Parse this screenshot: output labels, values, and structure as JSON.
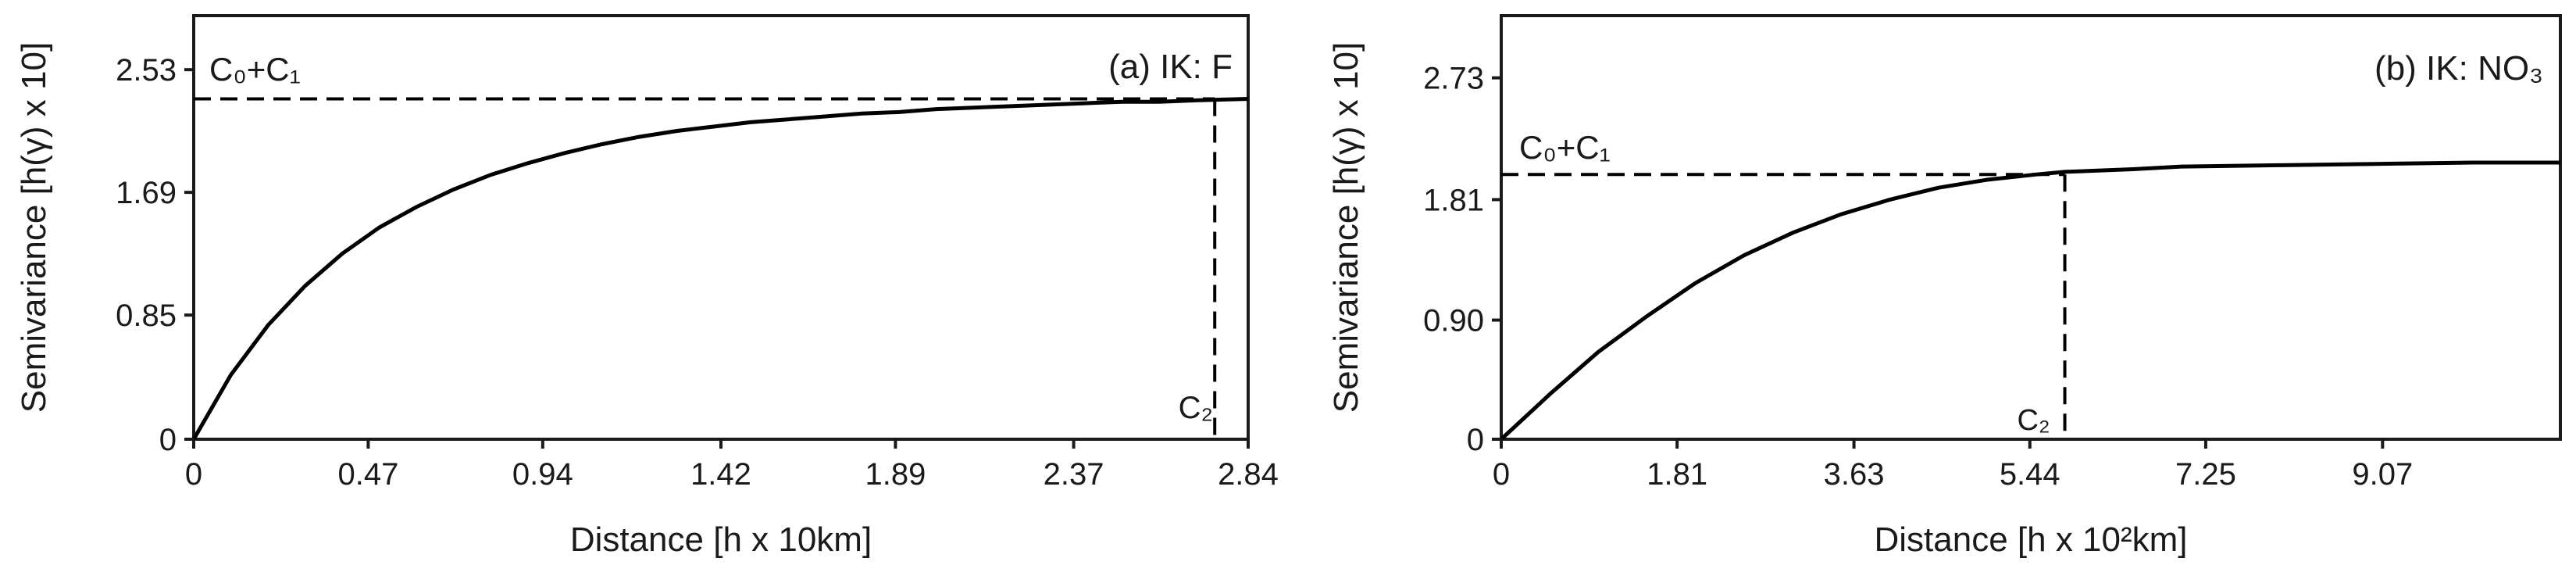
{
  "chart_data": [
    {
      "type": "line",
      "title": "(a) IK: F",
      "xlabel": "Distance [h x 10km]",
      "ylabel": "Semivariance [h(γ) x 10]",
      "x_ticks": [
        "0",
        "0.47",
        "0.94",
        "1.42",
        "1.89",
        "2.37",
        "2.84"
      ],
      "y_ticks": [
        "0",
        "0.85",
        "1.69",
        "2.53"
      ],
      "xlim": [
        0,
        2.84
      ],
      "ylim": [
        0,
        2.9
      ],
      "grid": false,
      "series": [
        {
          "x": [
            0,
            0.1,
            0.2,
            0.3,
            0.4,
            0.5,
            0.6,
            0.7,
            0.8,
            0.9,
            1.0,
            1.1,
            1.2,
            1.3,
            1.4,
            1.5,
            1.6,
            1.7,
            1.8,
            1.9,
            2.0,
            2.1,
            2.2,
            2.3,
            2.4,
            2.5,
            2.6,
            2.7,
            2.84
          ],
          "y": [
            0,
            0.44,
            0.78,
            1.05,
            1.27,
            1.45,
            1.59,
            1.71,
            1.81,
            1.89,
            1.96,
            2.02,
            2.07,
            2.11,
            2.14,
            2.17,
            2.19,
            2.21,
            2.23,
            2.24,
            2.26,
            2.27,
            2.28,
            2.29,
            2.3,
            2.31,
            2.31,
            2.32,
            2.33
          ]
        }
      ],
      "sill": 2.33,
      "range": 2.75,
      "annotations": {
        "sill_label": "C₀+C₁",
        "range_label": "C₂"
      }
    },
    {
      "type": "line",
      "title": "(b) IK: NO₃",
      "xlabel": "Distance [h x 10²km]",
      "ylabel": "Semivariance [h(γ) x 10]",
      "x_ticks": [
        "0",
        "1.81",
        "3.63",
        "5.44",
        "7.25",
        "9.07"
      ],
      "y_ticks": [
        "0",
        "0.90",
        "1.81",
        "2.73"
      ],
      "xlim": [
        0,
        10.9
      ],
      "ylim": [
        0,
        3.2
      ],
      "grid": false,
      "series": [
        {
          "x": [
            0,
            0.5,
            1.0,
            1.5,
            2.0,
            2.5,
            3.0,
            3.5,
            4.0,
            4.5,
            5.0,
            5.5,
            5.8,
            6.5,
            7.0,
            8.0,
            9.0,
            10.0,
            10.9
          ],
          "y": [
            0,
            0.34,
            0.66,
            0.93,
            1.18,
            1.39,
            1.56,
            1.7,
            1.81,
            1.9,
            1.96,
            2.0,
            2.02,
            2.04,
            2.06,
            2.07,
            2.08,
            2.09,
            2.09
          ]
        }
      ],
      "sill": 2.0,
      "range": 5.8,
      "annotations": {
        "sill_label": "C₀+C₁",
        "range_label": "C₂"
      }
    }
  ]
}
